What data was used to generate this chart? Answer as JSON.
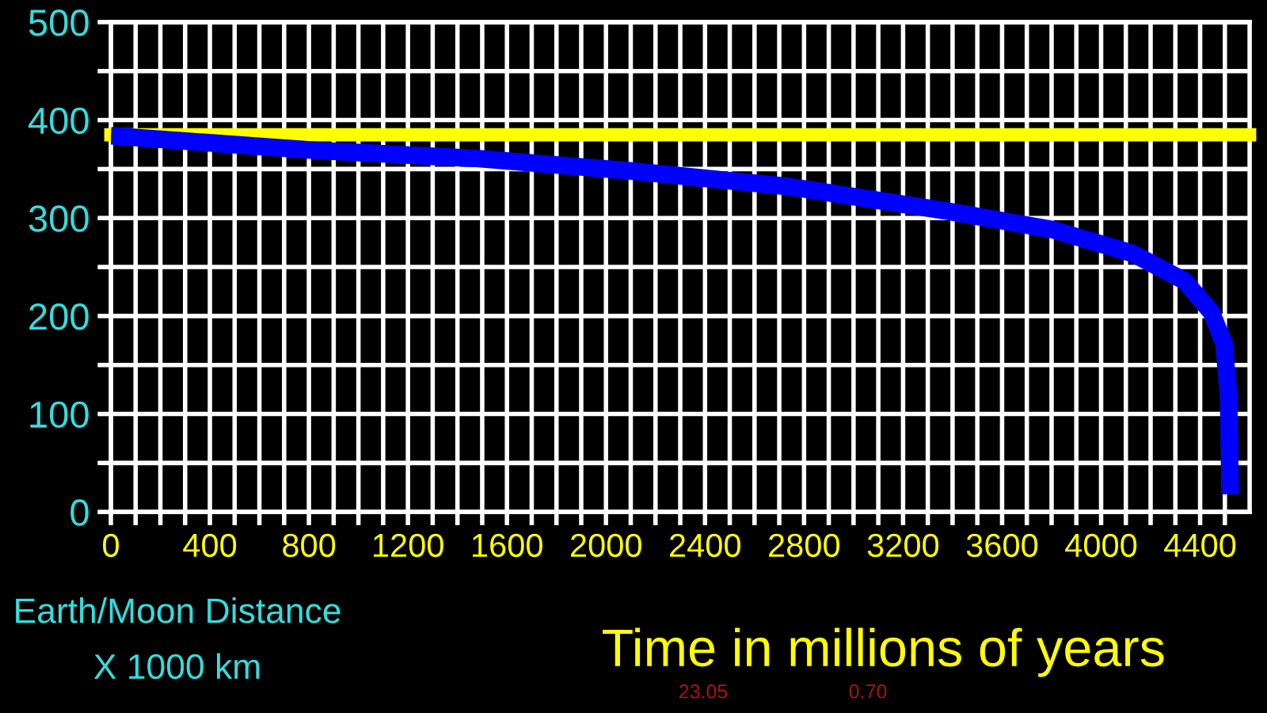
{
  "chart_data": {
    "type": "line",
    "xlabel": "Time in millions of years",
    "ylabel": "Earth/Moon Distance\nX 1000 km",
    "x": [
      0,
      829,
      1467,
      2104,
      2742,
      3380,
      3807,
      4126,
      4336,
      4445,
      4496,
      4515,
      4521
    ],
    "series": [
      {
        "color": "#0000ff",
        "values": [
          384,
          369,
          361,
          348,
          332,
          307,
          288,
          264,
          236,
          204,
          172,
          118,
          18
        ]
      }
    ],
    "ref_lines": [
      {
        "axis": "y",
        "value": 385,
        "color": "#ffff00"
      }
    ],
    "xlim": [
      0,
      4600
    ],
    "ylim": [
      0,
      500
    ],
    "xticks": [
      0,
      {
        "value": 100,
        "label": null
      },
      {
        "value": 200,
        "label": null
      },
      {
        "value": 300,
        "label": null
      },
      400,
      {
        "value": 500,
        "label": null
      },
      {
        "value": 600,
        "label": null
      },
      {
        "value": 700,
        "label": null
      },
      800,
      {
        "value": 900,
        "label": null
      },
      {
        "value": 1000,
        "label": null
      },
      {
        "value": 1100,
        "label": null
      },
      1200,
      {
        "value": 1300,
        "label": null
      },
      {
        "value": 1400,
        "label": null
      },
      {
        "value": 1500,
        "label": null
      },
      1600,
      {
        "value": 1700,
        "label": null
      },
      {
        "value": 1800,
        "label": null
      },
      {
        "value": 1900,
        "label": null
      },
      2000,
      {
        "value": 2100,
        "label": null
      },
      {
        "value": 2200,
        "label": null
      },
      {
        "value": 2300,
        "label": null
      },
      2400,
      {
        "value": 2500,
        "label": null
      },
      {
        "value": 2600,
        "label": null
      },
      {
        "value": 2700,
        "label": null
      },
      2800,
      {
        "value": 2900,
        "label": null
      },
      {
        "value": 3000,
        "label": null
      },
      {
        "value": 3100,
        "label": null
      },
      3200,
      {
        "value": 3300,
        "label": null
      },
      {
        "value": 3400,
        "label": null
      },
      {
        "value": 3500,
        "label": null
      },
      3600,
      {
        "value": 3700,
        "label": null
      },
      {
        "value": 3800,
        "label": null
      },
      {
        "value": 3900,
        "label": null
      },
      4000,
      {
        "value": 4100,
        "label": null
      },
      {
        "value": 4200,
        "label": null
      },
      {
        "value": 4300,
        "label": null
      },
      4400,
      {
        "value": 4500,
        "label": null
      }
    ],
    "yticks": [
      0,
      {
        "value": 50,
        "label": null
      },
      100,
      {
        "value": 150,
        "label": null
      },
      200,
      {
        "value": 250,
        "label": null
      },
      300,
      {
        "value": 350,
        "label": null
      },
      400,
      {
        "value": 450,
        "label": null
      },
      500
    ],
    "grid": true,
    "legend": false,
    "marker": "none",
    "line_style": "solid",
    "annotations": [
      "23.05",
      "0.70"
    ]
  }
}
